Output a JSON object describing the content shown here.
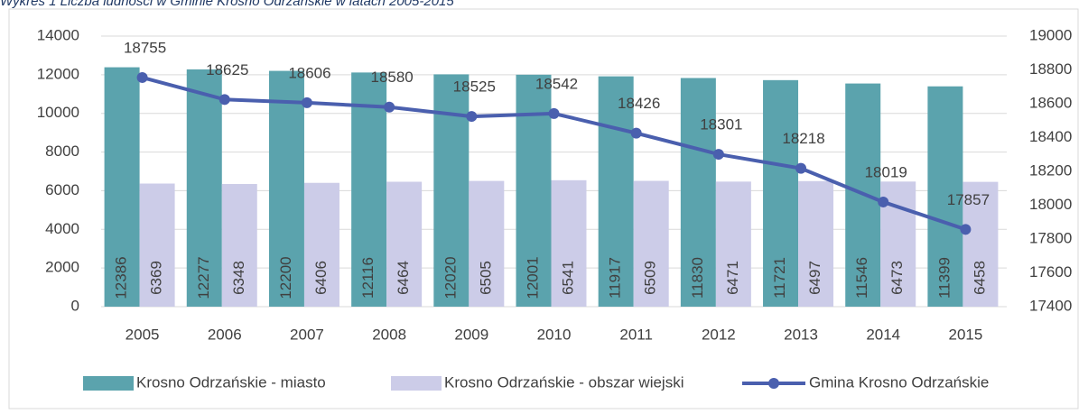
{
  "chart_data": {
    "type": "bar-line",
    "title": "Wykres 1 Liczba ludności w Gminie Krosno Odrzańskie w latach 2005-2015",
    "categories": [
      "2005",
      "2006",
      "2007",
      "2008",
      "2009",
      "2010",
      "2011",
      "2012",
      "2013",
      "2014",
      "2015"
    ],
    "series": [
      {
        "name": "Krosno Odrzańskie - miasto",
        "color": "#5ba3ad",
        "values": [
          12386,
          12277,
          12200,
          12116,
          12020,
          12001,
          11917,
          11830,
          11721,
          11546,
          11399
        ]
      },
      {
        "name": "Krosno Odrzańskie - obszar wiejski",
        "color": "#cccce8",
        "values": [
          6369,
          6348,
          6406,
          6464,
          6505,
          6541,
          6509,
          6471,
          6497,
          6473,
          6458
        ]
      },
      {
        "name": "Gmina Krosno Odrzańskie",
        "color": "#4a5fae",
        "axis": "y2",
        "type": "line",
        "values": [
          18755,
          18625,
          18606,
          18580,
          18525,
          18542,
          18426,
          18301,
          18218,
          18019,
          17857
        ]
      }
    ],
    "ylim": [
      0,
      14000
    ],
    "yticks": [
      0,
      2000,
      4000,
      6000,
      8000,
      10000,
      12000,
      14000
    ],
    "y2lim": [
      17400,
      19000
    ],
    "y2ticks": [
      17400,
      17600,
      17800,
      18000,
      18200,
      18400,
      18600,
      18800,
      19000
    ],
    "grid": true,
    "legend": "bottom"
  }
}
